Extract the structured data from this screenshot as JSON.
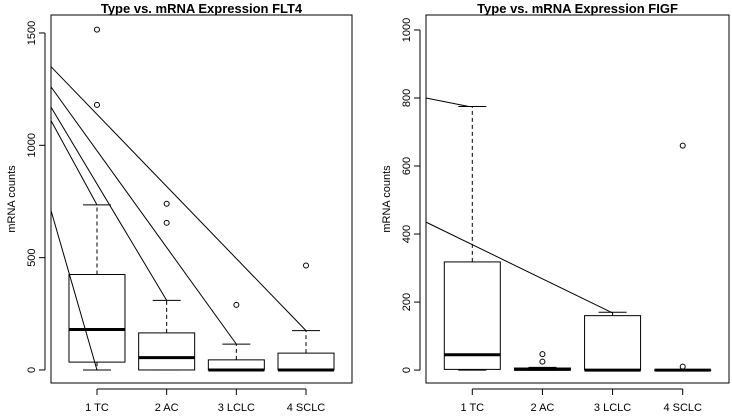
{
  "chart_data": [
    {
      "type": "box",
      "title": "Type vs. mRNA Expression FLT4",
      "xlabel": "",
      "ylabel": "mRNA counts",
      "categories": [
        "1 TC",
        "2 AC",
        "3 LCLC",
        "4 SCLC"
      ],
      "yticks": [
        0,
        500,
        1000,
        1500
      ],
      "ylim": [
        -58,
        1580
      ],
      "xlim": [
        0.34,
        4.66
      ],
      "boxes": [
        {
          "min": 0,
          "q1": 35,
          "median": 180,
          "q3": 425,
          "max": 735,
          "outliers": [
            1180,
            1515
          ]
        },
        {
          "min": 0,
          "q1": 0,
          "median": 55,
          "q3": 165,
          "max": 310,
          "outliers": [
            655,
            740
          ]
        },
        {
          "min": 0,
          "q1": 0,
          "median": 0,
          "q3": 45,
          "max": 115,
          "outliers": [
            290
          ]
        },
        {
          "min": 0,
          "q1": 0,
          "median": 0,
          "q3": 75,
          "max": 175,
          "outliers": [
            465
          ]
        }
      ],
      "annotation_lines": [
        [
          [
            0.34,
            1350
          ],
          [
            4,
            175
          ]
        ],
        [
          [
            0.34,
            1260
          ],
          [
            3,
            115
          ]
        ],
        [
          [
            0.34,
            1170
          ],
          [
            2,
            310
          ]
        ],
        [
          [
            0.34,
            1110
          ],
          [
            1,
            735
          ]
        ],
        [
          [
            0.34,
            710
          ],
          [
            1,
            0
          ]
        ]
      ]
    },
    {
      "type": "box",
      "title": "Type vs. mRNA Expression FIGF",
      "xlabel": "",
      "ylabel": "mRNA counts",
      "categories": [
        "1 TC",
        "2 AC",
        "3 LCLC",
        "4 SCLC"
      ],
      "yticks": [
        0,
        200,
        400,
        600,
        800,
        1000
      ],
      "ylim": [
        -38,
        1044
      ],
      "xlim": [
        0.34,
        4.66
      ],
      "boxes": [
        {
          "min": 0,
          "q1": 2,
          "median": 45,
          "q3": 318,
          "max": 775,
          "outliers": []
        },
        {
          "min": 0,
          "q1": 0,
          "median": 2,
          "q3": 6,
          "max": 8,
          "outliers": [
            25,
            47
          ]
        },
        {
          "min": 0,
          "q1": 0,
          "median": 0,
          "q3": 160,
          "max": 170,
          "outliers": []
        },
        {
          "min": 0,
          "q1": 0,
          "median": 0,
          "q3": 0,
          "max": 0,
          "outliers": [
            10,
            660
          ]
        }
      ],
      "annotation_lines": [
        [
          [
            0.34,
            800
          ],
          [
            0.95,
            775
          ]
        ],
        [
          [
            0.34,
            435
          ],
          [
            3,
            168
          ]
        ]
      ]
    }
  ]
}
